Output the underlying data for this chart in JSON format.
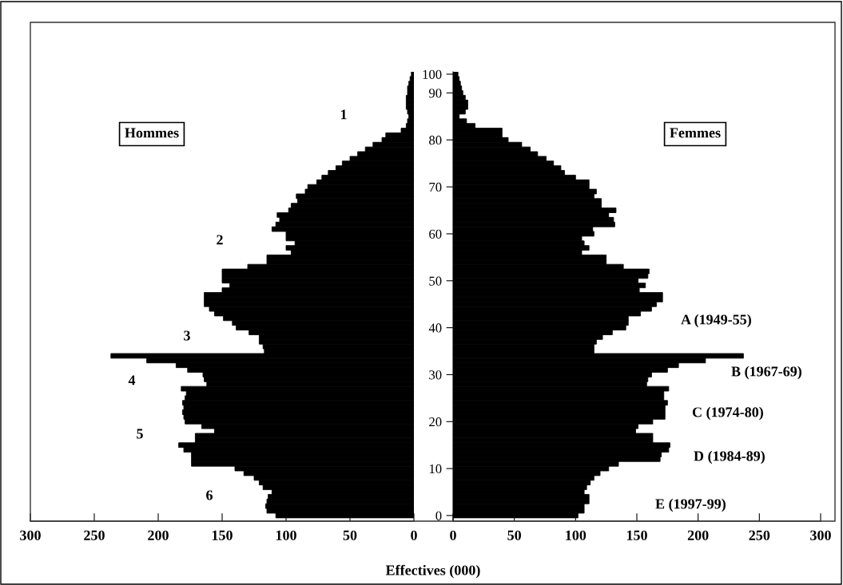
{
  "chart_data": [
    {
      "type": "bar",
      "orientation": "horizontal",
      "xlabel": "Effectives (000)",
      "color": "#000000",
      "tick_labels": "x",
      "grid": false,
      "categories": [
        "100",
        null,
        null,
        null,
        "90",
        null,
        null,
        null,
        null,
        null,
        null,
        null,
        null,
        null,
        "80",
        null,
        null,
        null,
        null,
        null,
        null,
        null,
        null,
        null,
        "70",
        null,
        null,
        null,
        null,
        null,
        null,
        null,
        null,
        null,
        "60",
        null,
        null,
        null,
        null,
        null,
        null,
        null,
        null,
        null,
        "50",
        null,
        null,
        null,
        null,
        null,
        null,
        null,
        null,
        null,
        "40",
        null,
        null,
        null,
        null,
        null,
        null,
        null,
        null,
        null,
        "30",
        null,
        null,
        null,
        null,
        null,
        null,
        null,
        null,
        null,
        "20",
        null,
        null,
        null,
        null,
        null,
        null,
        null,
        null,
        null,
        "10",
        null,
        null,
        null,
        null,
        null,
        null,
        null,
        null,
        null,
        "0"
      ],
      "values": [
        2,
        3,
        4,
        5,
        5,
        6,
        6,
        6,
        5,
        4,
        5,
        6,
        10,
        22,
        25,
        32,
        38,
        44,
        50,
        56,
        61,
        67,
        72,
        76,
        83,
        85,
        92,
        91,
        96,
        98,
        107,
        105,
        108,
        111,
        100,
        100,
        93,
        100,
        96,
        115,
        115,
        130,
        150,
        150,
        150,
        144,
        150,
        164,
        164,
        164,
        160,
        156,
        149,
        142,
        139,
        129,
        121,
        121,
        118,
        117,
        237,
        209,
        186,
        177,
        165,
        164,
        162,
        182,
        178,
        179,
        181,
        180,
        181,
        180,
        179,
        166,
        156,
        171,
        171,
        184,
        180,
        174,
        174,
        174,
        140,
        133,
        125,
        121,
        118,
        111,
        114,
        115,
        116,
        115,
        108
      ],
      "xlim": [
        300,
        0
      ],
      "xticks": [
        300,
        250,
        200,
        150,
        100,
        50,
        0
      ],
      "annotations": [
        "Hommes",
        "1",
        "2",
        "3",
        "4",
        "5",
        "6"
      ]
    },
    {
      "type": "bar",
      "orientation": "horizontal",
      "color": "#000000",
      "grid": false,
      "categories": [
        "100",
        null,
        null,
        null,
        "90",
        null,
        null,
        null,
        null,
        null,
        null,
        null,
        null,
        null,
        "80",
        null,
        null,
        null,
        null,
        null,
        null,
        null,
        null,
        null,
        "70",
        null,
        null,
        null,
        null,
        null,
        null,
        null,
        null,
        null,
        "60",
        null,
        null,
        null,
        null,
        null,
        null,
        null,
        null,
        null,
        "50",
        null,
        null,
        null,
        null,
        null,
        null,
        null,
        null,
        null,
        "40",
        null,
        null,
        null,
        null,
        null,
        null,
        null,
        null,
        null,
        "30",
        null,
        null,
        null,
        null,
        null,
        null,
        null,
        null,
        null,
        "20",
        null,
        null,
        null,
        null,
        null,
        null,
        null,
        null,
        null,
        "10",
        null,
        null,
        null,
        null,
        null,
        null,
        null,
        null,
        null,
        "0"
      ],
      "values": [
        4,
        5,
        6,
        7,
        8,
        10,
        12,
        12,
        10,
        5,
        11,
        18,
        40,
        40,
        45,
        56,
        63,
        69,
        76,
        82,
        88,
        91,
        100,
        111,
        111,
        117,
        115,
        121,
        121,
        133,
        127,
        131,
        132,
        114,
        115,
        105,
        107,
        111,
        105,
        125,
        125,
        139,
        160,
        159,
        151,
        157,
        152,
        171,
        171,
        166,
        162,
        153,
        143,
        143,
        141,
        130,
        122,
        117,
        115,
        115,
        237,
        206,
        184,
        175,
        162,
        159,
        158,
        176,
        172,
        172,
        175,
        173,
        173,
        173,
        163,
        151,
        149,
        163,
        163,
        177,
        176,
        170,
        169,
        135,
        127,
        120,
        115,
        112,
        109,
        107,
        111,
        111,
        107,
        107,
        102
      ],
      "xlim": [
        0,
        300
      ],
      "xticks": [
        0,
        50,
        100,
        150,
        200,
        250,
        300
      ],
      "annotations": [
        "Femmes",
        "A (1949-55)",
        "B (1967-69)",
        "C (1974-80)",
        "D (1984-89)",
        "E (1997-99)"
      ]
    }
  ]
}
